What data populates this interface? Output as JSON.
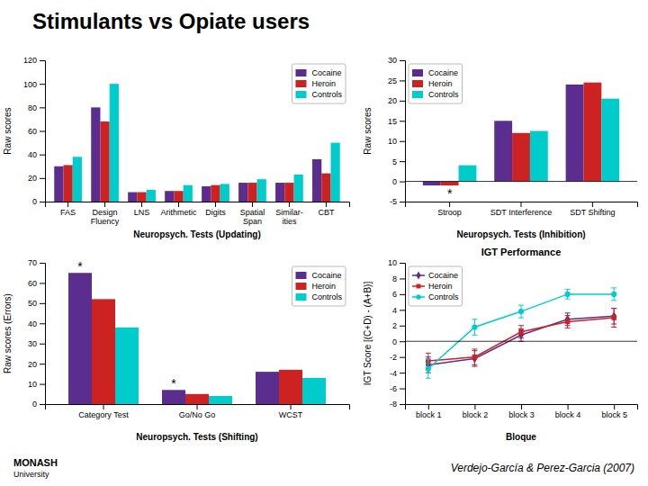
{
  "title": "Stimulants vs Opiate users",
  "annotations": [
    {
      "text": "Verdejo-García & Perez-Garcia (2007)"
    },
    {
      "text": "MONASH"
    },
    {
      "text": "University"
    }
  ],
  "chart_data": [
    {
      "type": "bar",
      "xlabel": "Neuropsych. Tests (Updating)",
      "ylabel": "Raw scores",
      "categories": [
        "FAS",
        "Design\nFluency",
        "LNS",
        "Arithmetic",
        "Digits",
        "Spatial\nSpan",
        "Similar-\nities",
        "CBT"
      ],
      "series": [
        {
          "name": "Cocaine",
          "color": "#5b2d8e",
          "values": [
            30,
            80,
            8,
            9,
            13,
            16,
            16,
            36
          ]
        },
        {
          "name": "Heroin",
          "color": "#cc2222",
          "values": [
            31,
            68,
            8,
            9,
            14,
            16,
            16,
            24
          ]
        },
        {
          "name": "Controls",
          "color": "#00cccc",
          "values": [
            38,
            100,
            10,
            14,
            15,
            19,
            23,
            50
          ]
        }
      ],
      "ylim": [
        0,
        120
      ],
      "yticks": [
        0,
        20,
        40,
        60,
        80,
        100,
        120
      ],
      "grid": false,
      "legend": "upper-right"
    },
    {
      "type": "bar",
      "xlabel": "Neuropsych. Tests (Inhibition)",
      "ylabel": "Raw scores",
      "categories": [
        "Stroop",
        "SDT Interference",
        "SDT Shifting"
      ],
      "series": [
        {
          "name": "Cocaine",
          "color": "#5b2d8e",
          "values": [
            -1,
            15,
            24
          ]
        },
        {
          "name": "Heroin",
          "color": "#cc2222",
          "values": [
            -1,
            12,
            24.5
          ]
        },
        {
          "name": "Controls",
          "color": "#00cccc",
          "values": [
            4,
            12.5,
            20.5
          ]
        }
      ],
      "ylim": [
        -5,
        30
      ],
      "yticks": [
        -5,
        0,
        5,
        10,
        15,
        20,
        25,
        30
      ],
      "grid": false,
      "legend": "upper-left",
      "annotations": [
        {
          "text": "*",
          "x": "Stroop",
          "y": -4.2
        }
      ]
    },
    {
      "type": "bar",
      "xlabel": "Neuropsych. Tests (Shifting)",
      "ylabel": "Raw scores (Errors)",
      "categories": [
        "Category Test",
        "Go/No Go",
        "WCST"
      ],
      "series": [
        {
          "name": "Cocaine",
          "color": "#5b2d8e",
          "values": [
            65,
            7,
            16
          ]
        },
        {
          "name": "Heroin",
          "color": "#cc2222",
          "values": [
            52,
            5,
            17
          ]
        },
        {
          "name": "Controls",
          "color": "#00cccc",
          "values": [
            38,
            4,
            13
          ]
        }
      ],
      "ylim": [
        0,
        70
      ],
      "yticks": [
        0,
        10,
        20,
        30,
        40,
        50,
        60,
        70
      ],
      "grid": false,
      "legend": "upper-right",
      "annotations": [
        {
          "text": "*",
          "x": "Category Test",
          "series": "Cocaine",
          "y": 66
        },
        {
          "text": "*",
          "x": "Go/No Go",
          "series": "Cocaine",
          "y": 8
        }
      ]
    },
    {
      "type": "line",
      "title": "IGT Performance",
      "xlabel": "Bloque",
      "ylabel": "IGT Score [(C+D) - (A+B)]",
      "categories": [
        "block 1",
        "block 2",
        "block 3",
        "block 4",
        "block 5"
      ],
      "series": [
        {
          "name": "Cocaine",
          "color": "#5b2d8e",
          "marker": "diamond",
          "values": [
            -3.0,
            -2.2,
            0.8,
            2.8,
            3.2
          ],
          "errors": [
            1.0,
            1.0,
            0.8,
            0.8,
            1.0
          ]
        },
        {
          "name": "Heroin",
          "color": "#cc2222",
          "marker": "square",
          "values": [
            -2.5,
            -2.0,
            1.2,
            2.5,
            3.0
          ],
          "errors": [
            1.0,
            1.0,
            0.8,
            0.8,
            1.2
          ]
        },
        {
          "name": "Controls",
          "color": "#00cccc",
          "marker": "circle",
          "values": [
            -3.5,
            1.8,
            3.8,
            6.0,
            6.0
          ],
          "errors": [
            1.2,
            1.0,
            0.8,
            0.6,
            0.8
          ]
        }
      ],
      "ylim": [
        -8,
        10
      ],
      "yticks": [
        -8,
        -6,
        -4,
        -2,
        0,
        2,
        4,
        6,
        8,
        10
      ],
      "grid": false,
      "legend": "upper-left"
    }
  ]
}
